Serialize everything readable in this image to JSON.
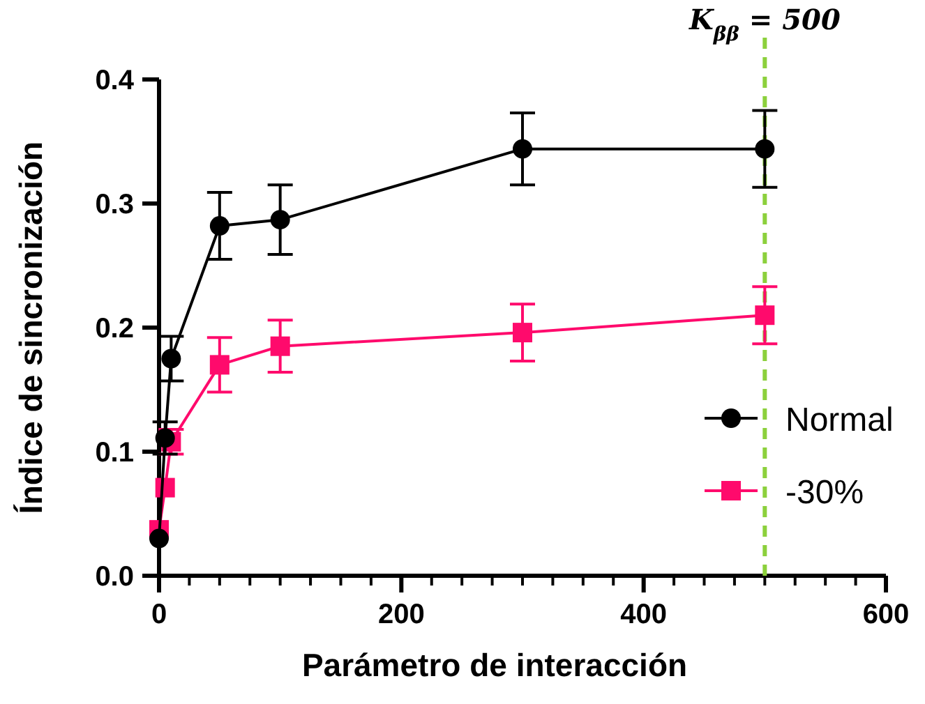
{
  "chart_data": {
    "type": "line",
    "xlabel": "Parámetro de interacción",
    "ylabel": "Índice de sincronización",
    "xlim": [
      0,
      600
    ],
    "xticks": [
      0,
      200,
      400,
      600
    ],
    "ylim": [
      0,
      0.4
    ],
    "yticks": [
      {
        "value": 0,
        "label": "0.0"
      },
      {
        "value": 0.1,
        "label": "0.1"
      },
      {
        "value": 0.2,
        "label": "0.2"
      },
      {
        "value": 0.3,
        "label": "0.3"
      },
      {
        "value": 0.4,
        "label": "0.4"
      }
    ],
    "x": [
      0,
      5,
      10,
      50,
      100,
      300,
      500
    ],
    "series": [
      {
        "name": "Normal",
        "color": "#000000",
        "marker": "circle",
        "values": [
          0.03,
          0.111,
          0.175,
          0.282,
          0.287,
          0.344,
          0.344
        ],
        "errors": [
          null,
          0.013,
          0.018,
          0.027,
          0.028,
          0.029,
          0.031
        ]
      },
      {
        "name": "-30%",
        "color": "#ff0a6c",
        "marker": "square",
        "values": [
          0.037,
          0.071,
          0.108,
          0.17,
          0.185,
          0.196,
          0.21
        ],
        "errors": [
          null,
          null,
          0.01,
          0.022,
          0.021,
          0.023,
          0.023
        ]
      }
    ],
    "ref_lines": [
      {
        "axis": "x",
        "value": 500,
        "label": "K$_{ββ}$ = 500",
        "color": "#8cd03c",
        "line_style": "dashed"
      }
    ],
    "legend": "right",
    "grid": false
  }
}
